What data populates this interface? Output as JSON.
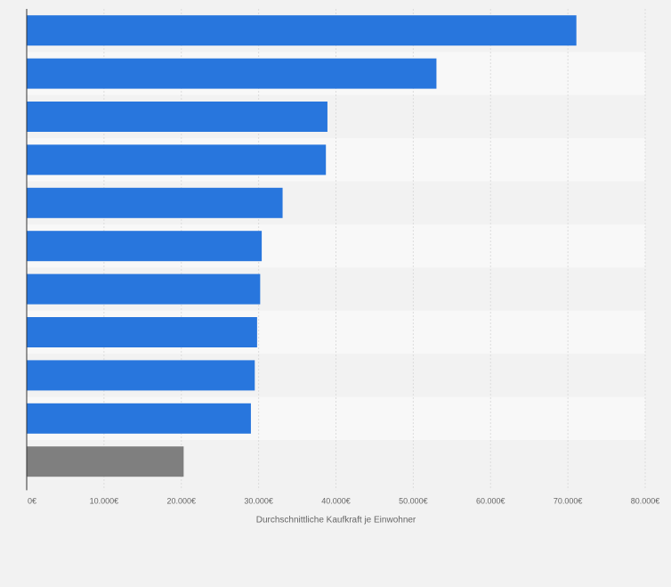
{
  "colors": {
    "background": "#f2f2f2",
    "band_light": "#f8f8f8",
    "band_dark": "#f2f2f2",
    "bar_primary": "#2876dd",
    "bar_highlight": "#7f7f7f",
    "gridline": "#dcdcdc",
    "axis": "#333333"
  },
  "chart_data": {
    "type": "bar",
    "orientation": "horizontal",
    "title": "",
    "xlabel": "Durchschnittliche Kaufkraft je Einwohner",
    "ylabel": "",
    "xlim": [
      0,
      80000
    ],
    "grid": true,
    "x_ticks": [
      0,
      10000,
      20000,
      30000,
      40000,
      50000,
      60000,
      70000,
      80000
    ],
    "x_tick_labels": [
      "0€",
      "10.000€",
      "20.000€",
      "30.000€",
      "40.000€",
      "50.000€",
      "60.000€",
      "70.000€",
      "80.000€"
    ],
    "categories": [
      "",
      "",
      "",
      "",
      "",
      "",
      "",
      "",
      "",
      "",
      ""
    ],
    "values": [
      71100,
      53000,
      38900,
      38700,
      33100,
      30400,
      30200,
      29800,
      29500,
      29000,
      20300
    ],
    "highlight_index": 10
  }
}
